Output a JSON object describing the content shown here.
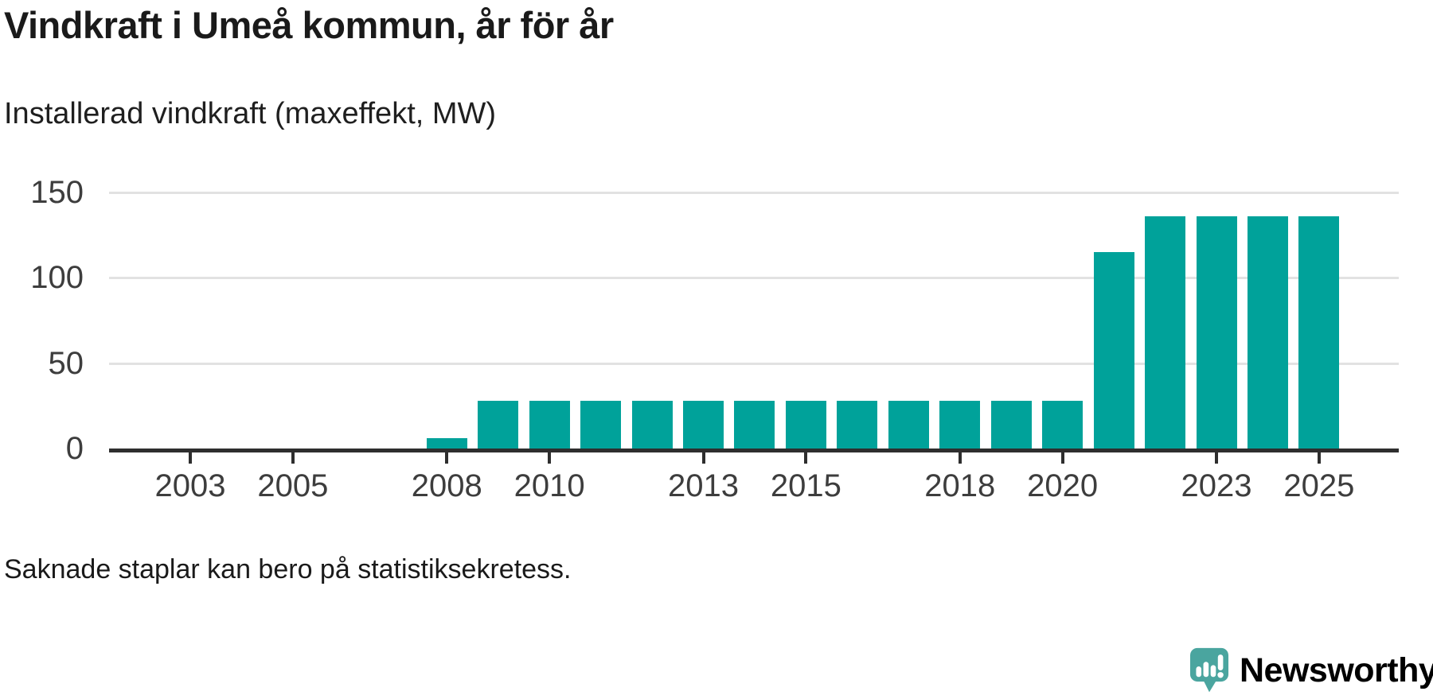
{
  "page": {
    "title": "Vindkraft i Umeå kommun, år för år",
    "subtitle": "Installerad vindkraft (maxeffekt, MW)",
    "note": "Saknade staplar kan bero på statistiksekretess.",
    "brand": {
      "name": "Newsworthy",
      "icon": "speech-bubble-bar-chart-icon"
    }
  },
  "colors": {
    "bar": "#00a29a",
    "axis": "#2e2e2e",
    "gridline": "#e2e2e2",
    "title_text": "#1a1a1a",
    "tick_label_text": "#3d3d3d",
    "brand_teal": "#47a49e"
  },
  "chart_data": {
    "type": "bar",
    "title": "Vindkraft i Umeå kommun, år för år",
    "subtitle": "Installerad vindkraft (maxeffekt, MW)",
    "unit": "MW",
    "categories": [
      2002,
      2003,
      2004,
      2005,
      2006,
      2007,
      2008,
      2009,
      2010,
      2011,
      2012,
      2013,
      2014,
      2015,
      2016,
      2017,
      2018,
      2019,
      2020,
      2021,
      2022,
      2023,
      2024,
      2025
    ],
    "values": [
      null,
      null,
      null,
      null,
      null,
      null,
      6,
      28,
      28,
      28,
      28,
      28,
      28,
      28,
      28,
      28,
      28,
      28,
      28,
      115,
      136,
      136,
      136,
      136
    ],
    "missing_years_note": "Saknade staplar kan bero på statistiksekretess.",
    "x_tick_labels": [
      "2003",
      "2005",
      "2008",
      "2010",
      "2013",
      "2015",
      "2018",
      "2020",
      "2023",
      "2025"
    ],
    "y_ticks": [
      0,
      50,
      100,
      150
    ],
    "ylim": [
      0,
      150
    ],
    "xlabel": "",
    "ylabel": "",
    "grid": "horizontal",
    "legend": "none"
  }
}
